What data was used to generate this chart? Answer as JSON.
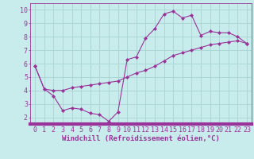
{
  "title": "",
  "xlabel": "Windchill (Refroidissement éolien,°C)",
  "ylabel": "",
  "background_color": "#c8ecec",
  "grid_color": "#a8d4d4",
  "line_color": "#993399",
  "marker_color": "#993399",
  "xlim": [
    -0.5,
    23.5
  ],
  "ylim": [
    1.5,
    10.5
  ],
  "yticks": [
    2,
    3,
    4,
    5,
    6,
    7,
    8,
    9,
    10
  ],
  "xticks": [
    0,
    1,
    2,
    3,
    4,
    5,
    6,
    7,
    8,
    9,
    10,
    11,
    12,
    13,
    14,
    15,
    16,
    17,
    18,
    19,
    20,
    21,
    22,
    23
  ],
  "line1_x": [
    0,
    1,
    2,
    3,
    4,
    5,
    6,
    7,
    8,
    9,
    10,
    11,
    12,
    13,
    14,
    15,
    16,
    17,
    18,
    19,
    20,
    21,
    22,
    23
  ],
  "line1_y": [
    5.8,
    4.1,
    3.6,
    2.5,
    2.7,
    2.6,
    2.3,
    2.2,
    1.7,
    2.4,
    6.3,
    6.5,
    7.9,
    8.6,
    9.7,
    9.9,
    9.4,
    9.6,
    8.1,
    8.4,
    8.3,
    8.3,
    8.0,
    7.5
  ],
  "line2_x": [
    0,
    1,
    2,
    3,
    4,
    5,
    6,
    7,
    8,
    9,
    10,
    11,
    12,
    13,
    14,
    15,
    16,
    17,
    18,
    19,
    20,
    21,
    22,
    23
  ],
  "line2_y": [
    5.8,
    4.1,
    4.0,
    4.0,
    4.2,
    4.3,
    4.4,
    4.5,
    4.6,
    4.7,
    5.0,
    5.3,
    5.5,
    5.8,
    6.2,
    6.6,
    6.8,
    7.0,
    7.2,
    7.4,
    7.5,
    7.6,
    7.7,
    7.5
  ],
  "xlabel_fontsize": 6.5,
  "tick_fontsize": 6,
  "axis_label_color": "#993399",
  "tick_color": "#993399"
}
